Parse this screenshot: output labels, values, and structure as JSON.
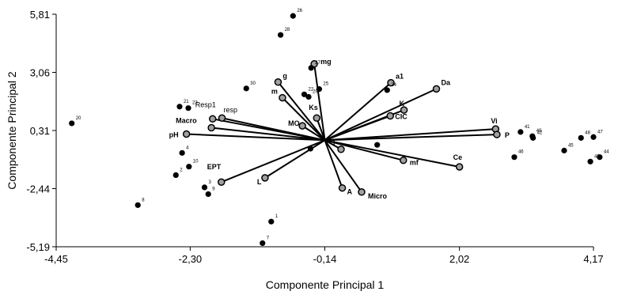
{
  "chart_data": {
    "type": "scatter",
    "subtype": "pca-biplot",
    "xlabel": "Componente Principal 1",
    "ylabel": "Componente Principal 2",
    "xlim": [
      -4.45,
      4.17
    ],
    "ylim": [
      -5.19,
      5.81
    ],
    "xticks": [
      "-4,45",
      "-2,30",
      "-0,14",
      "2,02",
      "4,17"
    ],
    "yticks": [
      "5,81",
      "3,06",
      "0,31",
      "-2,44",
      "-5,19"
    ],
    "xtick_values": [
      -4.45,
      -2.3,
      -0.14,
      2.02,
      4.17
    ],
    "ytick_values": [
      5.81,
      3.06,
      0.31,
      -2.44,
      -5.19
    ],
    "grid": false,
    "origin": [
      -0.14,
      -0.15
    ],
    "observations": [
      {
        "label": "1",
        "x": -1.0,
        "y": -4.0
      },
      {
        "label": "2",
        "x": -2.53,
        "y": -1.8
      },
      {
        "label": "3",
        "x": -2.07,
        "y": -2.38
      },
      {
        "label": "4",
        "x": -2.43,
        "y": -0.75
      },
      {
        "label": "7",
        "x": -1.14,
        "y": -5.02
      },
      {
        "label": "8",
        "x": -3.14,
        "y": -3.22
      },
      {
        "label": "9",
        "x": -2.01,
        "y": -2.7
      },
      {
        "label": "10",
        "x": -2.32,
        "y": -1.4
      },
      {
        "label": "20",
        "x": -4.2,
        "y": 0.65
      },
      {
        "label": "21",
        "x": -2.47,
        "y": 1.44
      },
      {
        "label": "22",
        "x": -0.47,
        "y": 2.02
      },
      {
        "label": "23",
        "x": -2.33,
        "y": 1.37
      },
      {
        "label": "24",
        "x": 0.86,
        "y": 2.22
      },
      {
        "label": "25",
        "x": -0.23,
        "y": 2.27
      },
      {
        "label": "26",
        "x": -0.65,
        "y": 5.73
      },
      {
        "label": "27",
        "x": -0.36,
        "y": 3.27
      },
      {
        "label": "28",
        "x": -0.85,
        "y": 4.83
      },
      {
        "label": "29",
        "x": -0.4,
        "y": 1.9
      },
      {
        "label": "30",
        "x": -1.4,
        "y": 2.3
      },
      {
        "label": "41",
        "x": 3.0,
        "y": 0.24
      },
      {
        "label": "42",
        "x": 3.2,
        "y": -0.04
      },
      {
        "label": "43",
        "x": 4.12,
        "y": -1.16
      },
      {
        "label": "44",
        "x": 4.27,
        "y": -0.95
      },
      {
        "label": "45",
        "x": 3.7,
        "y": -0.64
      },
      {
        "label": "46",
        "x": 2.9,
        "y": -0.95
      },
      {
        "label": "47",
        "x": 4.17,
        "y": 0.0
      },
      {
        "label": "48",
        "x": 3.97,
        "y": -0.04
      },
      {
        "label": "49",
        "x": 3.19,
        "y": 0.04
      },
      {
        "label": "",
        "x": -0.37,
        "y": -0.55
      },
      {
        "label": "",
        "x": 0.7,
        "y": -0.37
      }
    ],
    "variables": [
      {
        "name": "Resp1",
        "x": -1.94,
        "y": 0.86,
        "bold": false
      },
      {
        "name": "resp",
        "x": -1.79,
        "y": 0.9,
        "bold": false
      },
      {
        "name": "Macro",
        "x": -1.96,
        "y": 0.44,
        "bold": true
      },
      {
        "name": "pH",
        "x": -2.36,
        "y": 0.14,
        "bold": true
      },
      {
        "name": "EPT",
        "x": -1.8,
        "y": -2.13,
        "bold": true
      },
      {
        "name": "L",
        "x": -1.1,
        "y": -1.93,
        "bold": true
      },
      {
        "name": "g",
        "x": -0.89,
        "y": 2.6,
        "bold": true
      },
      {
        "name": "mg",
        "x": -0.31,
        "y": 3.46,
        "bold": true
      },
      {
        "name": "m",
        "x": -0.82,
        "y": 1.86,
        "bold": true
      },
      {
        "name": "MO",
        "x": -0.5,
        "y": 0.53,
        "bold": true
      },
      {
        "name": "Ks",
        "x": -0.27,
        "y": 0.9,
        "bold": true
      },
      {
        "name": "a1",
        "x": 0.92,
        "y": 2.57,
        "bold": true
      },
      {
        "name": "Da",
        "x": 1.65,
        "y": 2.28,
        "bold": true
      },
      {
        "name": "K",
        "x": 1.13,
        "y": 1.28,
        "bold": true
      },
      {
        "name": "CIC",
        "x": 0.91,
        "y": 1.0,
        "bold": true
      },
      {
        "name": "Vi",
        "x": 2.6,
        "y": 0.38,
        "bold": true
      },
      {
        "name": "P",
        "x": 2.62,
        "y": 0.12,
        "bold": true
      },
      {
        "name": "Ce",
        "x": 2.02,
        "y": -1.41,
        "bold": true
      },
      {
        "name": "mf",
        "x": 1.12,
        "y": -1.1,
        "bold": true
      },
      {
        "name": "I",
        "x": 0.12,
        "y": -0.58,
        "bold": true
      },
      {
        "name": "A",
        "x": 0.14,
        "y": -2.41,
        "bold": true
      },
      {
        "name": "Micro",
        "x": 0.45,
        "y": -2.6,
        "bold": true
      }
    ]
  }
}
